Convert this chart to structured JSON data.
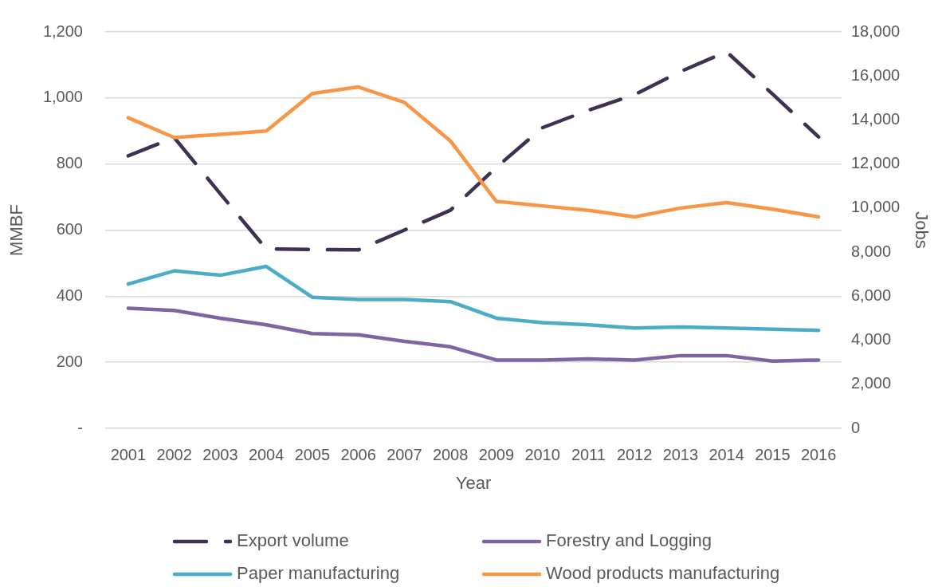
{
  "chart_data": {
    "type": "line",
    "xlabel": "Year",
    "ylabel": "MMBF",
    "y2label": "Jobs",
    "categories": [
      "2001",
      "2002",
      "2003",
      "2004",
      "2005",
      "2006",
      "2007",
      "2008",
      "2009",
      "2010",
      "2011",
      "2012",
      "2013",
      "2014",
      "2015",
      "2016"
    ],
    "ylim": [
      0,
      1200
    ],
    "yticks": [
      {
        "value": 0,
        "label": "-"
      },
      200,
      400,
      600,
      800,
      {
        "value": 1000,
        "label": "1,000"
      },
      {
        "value": 1200,
        "label": "1,200"
      }
    ],
    "y2lim": [
      0,
      18000
    ],
    "y2ticks": [
      0,
      {
        "value": 2000,
        "label": "2,000"
      },
      {
        "value": 4000,
        "label": "4,000"
      },
      {
        "value": 6000,
        "label": "6,000"
      },
      {
        "value": 8000,
        "label": "8,000"
      },
      {
        "value": 10000,
        "label": "10,000"
      },
      {
        "value": 12000,
        "label": "12,000"
      },
      {
        "value": 14000,
        "label": "14,000"
      },
      {
        "value": 16000,
        "label": "16,000"
      },
      {
        "value": 18000,
        "label": "18,000"
      }
    ],
    "grid": "y",
    "legend": "bottom",
    "marker": "none",
    "series": [
      {
        "name": "Export volume",
        "color": "#3f3151",
        "line_style": "dashed",
        "values": [
          825,
          880,
          710,
          543,
          541,
          540,
          600,
          660,
          790,
          910,
          963,
          1010,
          1080,
          1140,
          1012,
          882
        ]
      },
      {
        "name": "Forestry and Logging",
        "color": "#8064a2",
        "axis": "y2",
        "values": [
          5450,
          5350,
          5000,
          4700,
          4300,
          4250,
          3950,
          3700,
          3100,
          3100,
          3150,
          3100,
          3300,
          3300,
          3050,
          3100
        ]
      },
      {
        "name": "Paper manufacturing",
        "color": "#4bacc6",
        "axis": "y2",
        "values": [
          6550,
          7150,
          6950,
          7350,
          5950,
          5850,
          5850,
          5750,
          5000,
          4800,
          4700,
          4550,
          4600,
          4550,
          4500,
          4450
        ]
      },
      {
        "name": "Wood products manufacturing",
        "color": "#f79646",
        "axis": "y2",
        "values": [
          14100,
          13200,
          13350,
          13500,
          15200,
          15500,
          14800,
          13050,
          10300,
          10100,
          9900,
          9600,
          10000,
          10250,
          9950,
          9600
        ]
      }
    ]
  }
}
